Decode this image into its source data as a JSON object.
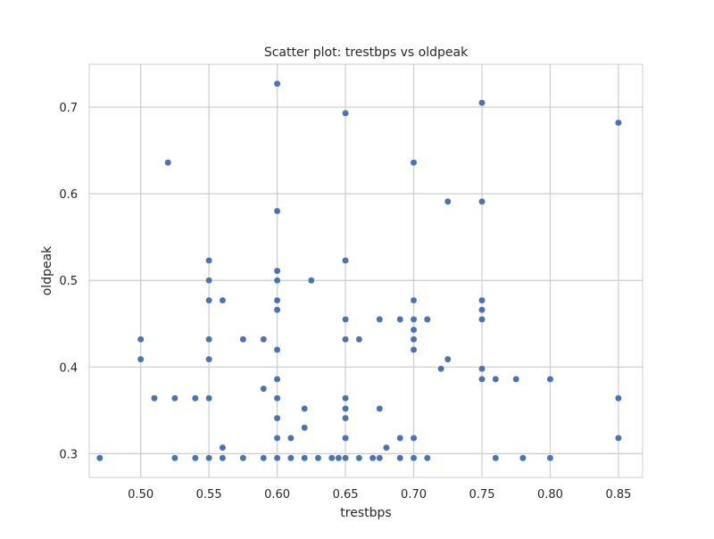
{
  "chart_data": {
    "type": "scatter",
    "title": "Scatter plot: trestbps vs oldpeak",
    "xlabel": "trestbps",
    "ylabel": "oldpeak",
    "xlim": [
      0.4623,
      0.8677
    ],
    "ylim": [
      0.2726,
      0.7495
    ],
    "xticks": [
      0.5,
      0.55,
      0.6,
      0.65,
      0.7,
      0.75,
      0.8,
      0.85
    ],
    "xtick_labels": [
      "0.50",
      "0.55",
      "0.60",
      "0.65",
      "0.70",
      "0.75",
      "0.80",
      "0.85"
    ],
    "yticks": [
      0.3,
      0.4,
      0.5,
      0.6,
      0.7
    ],
    "ytick_labels": [
      "0.3",
      "0.4",
      "0.5",
      "0.6",
      "0.7"
    ],
    "grid": true,
    "marker_color": "#4C72B0",
    "grid_color": "#cccccc",
    "points": [
      [
        0.47,
        0.295
      ],
      [
        0.5,
        0.432
      ],
      [
        0.5,
        0.409
      ],
      [
        0.51,
        0.364
      ],
      [
        0.52,
        0.636
      ],
      [
        0.525,
        0.364
      ],
      [
        0.525,
        0.295
      ],
      [
        0.54,
        0.364
      ],
      [
        0.54,
        0.295
      ],
      [
        0.55,
        0.523
      ],
      [
        0.55,
        0.5
      ],
      [
        0.55,
        0.477
      ],
      [
        0.55,
        0.432
      ],
      [
        0.55,
        0.409
      ],
      [
        0.55,
        0.364
      ],
      [
        0.55,
        0.295
      ],
      [
        0.56,
        0.477
      ],
      [
        0.56,
        0.307
      ],
      [
        0.56,
        0.295
      ],
      [
        0.575,
        0.432
      ],
      [
        0.575,
        0.295
      ],
      [
        0.59,
        0.432
      ],
      [
        0.59,
        0.375
      ],
      [
        0.59,
        0.295
      ],
      [
        0.6,
        0.727
      ],
      [
        0.6,
        0.58
      ],
      [
        0.6,
        0.511
      ],
      [
        0.6,
        0.5
      ],
      [
        0.6,
        0.477
      ],
      [
        0.6,
        0.466
      ],
      [
        0.6,
        0.42
      ],
      [
        0.6,
        0.386
      ],
      [
        0.6,
        0.364
      ],
      [
        0.6,
        0.341
      ],
      [
        0.6,
        0.318
      ],
      [
        0.6,
        0.295
      ],
      [
        0.61,
        0.318
      ],
      [
        0.61,
        0.295
      ],
      [
        0.62,
        0.352
      ],
      [
        0.62,
        0.33
      ],
      [
        0.62,
        0.295
      ],
      [
        0.625,
        0.5
      ],
      [
        0.63,
        0.295
      ],
      [
        0.64,
        0.295
      ],
      [
        0.645,
        0.295
      ],
      [
        0.65,
        0.693
      ],
      [
        0.65,
        0.523
      ],
      [
        0.65,
        0.455
      ],
      [
        0.65,
        0.432
      ],
      [
        0.65,
        0.364
      ],
      [
        0.65,
        0.352
      ],
      [
        0.65,
        0.341
      ],
      [
        0.65,
        0.318
      ],
      [
        0.65,
        0.295
      ],
      [
        0.66,
        0.432
      ],
      [
        0.66,
        0.295
      ],
      [
        0.67,
        0.295
      ],
      [
        0.675,
        0.455
      ],
      [
        0.675,
        0.352
      ],
      [
        0.675,
        0.295
      ],
      [
        0.68,
        0.307
      ],
      [
        0.69,
        0.455
      ],
      [
        0.69,
        0.318
      ],
      [
        0.69,
        0.295
      ],
      [
        0.7,
        0.636
      ],
      [
        0.7,
        0.477
      ],
      [
        0.7,
        0.455
      ],
      [
        0.7,
        0.443
      ],
      [
        0.7,
        0.432
      ],
      [
        0.7,
        0.42
      ],
      [
        0.7,
        0.318
      ],
      [
        0.7,
        0.295
      ],
      [
        0.71,
        0.455
      ],
      [
        0.71,
        0.295
      ],
      [
        0.72,
        0.398
      ],
      [
        0.725,
        0.591
      ],
      [
        0.725,
        0.409
      ],
      [
        0.75,
        0.705
      ],
      [
        0.75,
        0.591
      ],
      [
        0.75,
        0.477
      ],
      [
        0.75,
        0.466
      ],
      [
        0.75,
        0.455
      ],
      [
        0.75,
        0.398
      ],
      [
        0.75,
        0.386
      ],
      [
        0.76,
        0.386
      ],
      [
        0.76,
        0.295
      ],
      [
        0.775,
        0.386
      ],
      [
        0.78,
        0.295
      ],
      [
        0.8,
        0.386
      ],
      [
        0.8,
        0.295
      ],
      [
        0.85,
        0.682
      ],
      [
        0.85,
        0.364
      ],
      [
        0.85,
        0.318
      ]
    ]
  }
}
